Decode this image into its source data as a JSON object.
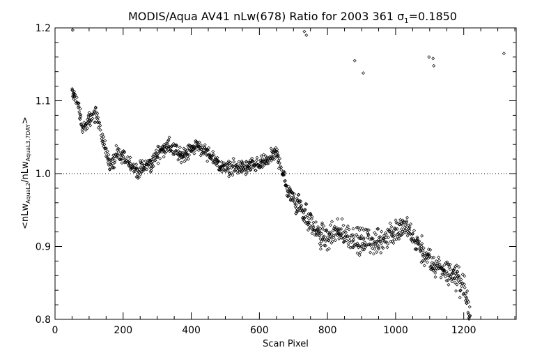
{
  "chart_data": {
    "type": "scatter",
    "title_main": "MODIS/Aqua AV41 nLw(678) Ratio for 2003 361 ",
    "title_sigma": "σ",
    "title_sigma_sub": "1",
    "title_value": "=0.1850",
    "xlabel": "Scan Pixel",
    "ylabel_parts": {
      "open": "<nLw",
      "sub1": "AquaL2",
      "mid": "/nLw",
      "sub2": "AquaL3,7DAY",
      "close": ">"
    },
    "xlim": [
      0,
      1354
    ],
    "ylim": [
      0.8,
      1.2
    ],
    "xticks": [
      "0",
      "200",
      "400",
      "600",
      "800",
      "1000",
      "1200"
    ],
    "yticks": [
      "0.8",
      "0.9",
      "1.0",
      "1.1",
      "1.2"
    ],
    "reference_line": 1.0,
    "reference_line_style": "dotted",
    "marker": "diamond",
    "trend": [
      [
        50,
        1.112
      ],
      [
        60,
        1.105
      ],
      [
        70,
        1.09
      ],
      [
        80,
        1.06
      ],
      [
        90,
        1.065
      ],
      [
        100,
        1.075
      ],
      [
        110,
        1.078
      ],
      [
        120,
        1.082
      ],
      [
        130,
        1.07
      ],
      [
        140,
        1.045
      ],
      [
        150,
        1.03
      ],
      [
        160,
        1.015
      ],
      [
        170,
        1.012
      ],
      [
        180,
        1.025
      ],
      [
        200,
        1.022
      ],
      [
        220,
        1.015
      ],
      [
        240,
        1.003
      ],
      [
        260,
        1.008
      ],
      [
        280,
        1.012
      ],
      [
        300,
        1.025
      ],
      [
        320,
        1.035
      ],
      [
        330,
        1.04
      ],
      [
        350,
        1.032
      ],
      [
        370,
        1.025
      ],
      [
        390,
        1.03
      ],
      [
        410,
        1.038
      ],
      [
        430,
        1.035
      ],
      [
        450,
        1.025
      ],
      [
        470,
        1.018
      ],
      [
        490,
        1.008
      ],
      [
        520,
        1.008
      ],
      [
        560,
        1.008
      ],
      [
        600,
        1.012
      ],
      [
        630,
        1.022
      ],
      [
        650,
        1.028
      ],
      [
        660,
        1.015
      ],
      [
        670,
        1.0
      ],
      [
        680,
        0.978
      ],
      [
        700,
        0.968
      ],
      [
        720,
        0.955
      ],
      [
        740,
        0.94
      ],
      [
        760,
        0.925
      ],
      [
        780,
        0.915
      ],
      [
        800,
        0.91
      ],
      [
        820,
        0.915
      ],
      [
        840,
        0.918
      ],
      [
        860,
        0.915
      ],
      [
        880,
        0.91
      ],
      [
        900,
        0.905
      ],
      [
        920,
        0.908
      ],
      [
        940,
        0.905
      ],
      [
        960,
        0.908
      ],
      [
        980,
        0.915
      ],
      [
        1000,
        0.922
      ],
      [
        1020,
        0.925
      ],
      [
        1040,
        0.92
      ],
      [
        1060,
        0.905
      ],
      [
        1080,
        0.892
      ],
      [
        1100,
        0.878
      ],
      [
        1120,
        0.872
      ],
      [
        1140,
        0.868
      ],
      [
        1160,
        0.865
      ],
      [
        1180,
        0.858
      ],
      [
        1200,
        0.845
      ],
      [
        1210,
        0.822
      ],
      [
        1220,
        0.805
      ]
    ],
    "outliers": [
      [
        52,
        1.197
      ],
      [
        732,
        1.195
      ],
      [
        738,
        1.19
      ],
      [
        880,
        1.155
      ],
      [
        905,
        1.138
      ],
      [
        1098,
        1.16
      ],
      [
        1110,
        1.158
      ],
      [
        1112,
        1.148
      ],
      [
        1318,
        1.165
      ]
    ]
  }
}
